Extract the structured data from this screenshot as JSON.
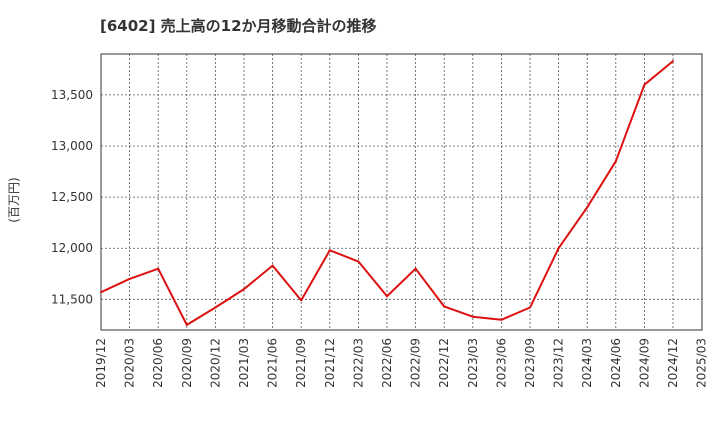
{
  "chart_data": {
    "type": "line",
    "title": "[6402]  売上高の12か月移動合計の推移",
    "xlabel": "",
    "ylabel": "(百万円)",
    "ylim": [
      11200,
      13900
    ],
    "yticks": [
      11500,
      12000,
      12500,
      13000,
      13500
    ],
    "ytick_labels": [
      "11,500",
      "12,000",
      "12,500",
      "13,000",
      "13,500"
    ],
    "xticks": [
      "2019/12",
      "2020/03",
      "2020/06",
      "2020/09",
      "2020/12",
      "2021/03",
      "2021/06",
      "2021/09",
      "2021/12",
      "2022/03",
      "2022/06",
      "2022/09",
      "2022/12",
      "2023/03",
      "2023/06",
      "2023/09",
      "2023/12",
      "2024/03",
      "2024/06",
      "2024/09",
      "2024/12",
      "2025/03"
    ],
    "grid": true,
    "series": [
      {
        "name": "売上高の12か月移動合計",
        "color": "#dd1111",
        "x": [
          "2019/12",
          "2020/03",
          "2020/06",
          "2020/09",
          "2020/12",
          "2021/03",
          "2021/06",
          "2021/09",
          "2021/12",
          "2022/03",
          "2022/06",
          "2022/09",
          "2022/12",
          "2023/03",
          "2023/06",
          "2023/09",
          "2023/12",
          "2024/03",
          "2024/06",
          "2024/09",
          "2024/12"
        ],
        "values": [
          11570,
          11700,
          11800,
          11250,
          11420,
          11600,
          11830,
          11490,
          11980,
          11870,
          11530,
          11800,
          11430,
          11330,
          11300,
          11420,
          12000,
          12400,
          12850,
          13600,
          13830
        ]
      }
    ]
  }
}
